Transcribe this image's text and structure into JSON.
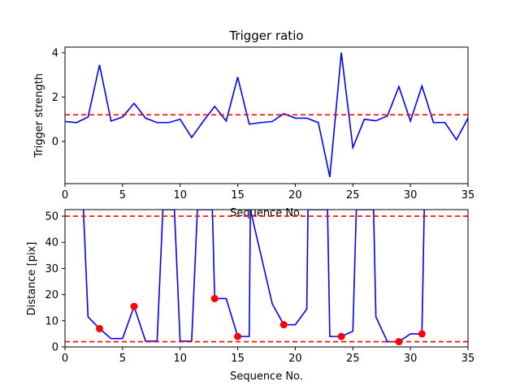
{
  "chart_data": [
    {
      "type": "line",
      "title": "Trigger ratio",
      "xlabel": "Sequence No.",
      "ylabel": "Trigger strength",
      "xlim": [
        0,
        35
      ],
      "ylim": [
        -1.9,
        4.25
      ],
      "xticks": [
        0,
        5,
        10,
        15,
        20,
        25,
        30,
        35
      ],
      "yticks": [
        0,
        2,
        4
      ],
      "grid": false,
      "series": [
        {
          "color": "#0000ff",
          "x": [
            0,
            1,
            2,
            3,
            4,
            5,
            6,
            7,
            8,
            9,
            10,
            11,
            12,
            13,
            14,
            15,
            16,
            17,
            18,
            19,
            20,
            21,
            22,
            23,
            24,
            25,
            26,
            27,
            28,
            29,
            30,
            31,
            32,
            33,
            34,
            35
          ],
          "y": [
            0.9,
            0.85,
            1.1,
            3.45,
            0.92,
            1.1,
            1.72,
            1.05,
            0.85,
            0.85,
            1.0,
            0.18,
            0.9,
            1.58,
            0.92,
            2.9,
            0.78,
            0.85,
            0.9,
            1.25,
            1.05,
            1.05,
            0.85,
            -1.6,
            4.0,
            -0.28,
            1.0,
            0.93,
            1.15,
            2.47,
            0.92,
            2.5,
            0.85,
            0.85,
            0.08,
            1.05
          ]
        }
      ],
      "hlines": [
        {
          "y": 1.2,
          "color": "#ff0000",
          "style": "dashed"
        }
      ]
    },
    {
      "type": "line",
      "title": "",
      "xlabel": "Sequence No.",
      "ylabel": "Distance [pix]",
      "xlim": [
        0,
        35
      ],
      "ylim": [
        0,
        52.5
      ],
      "xticks": [
        0,
        5,
        10,
        15,
        20,
        25,
        30,
        35
      ],
      "yticks": [
        0,
        10,
        20,
        30,
        40,
        50
      ],
      "grid": false,
      "series": [
        {
          "color": "#0000ff",
          "x": [
            1.6,
            2,
            3,
            4,
            5,
            6,
            7,
            8,
            8.5,
            9.5,
            10,
            11,
            11.5,
            12.8,
            13,
            14,
            15,
            16,
            16.1,
            18,
            19,
            20,
            21,
            21.1,
            22.8,
            23,
            24,
            25,
            25.3,
            26.8,
            27,
            28,
            29,
            30,
            31,
            31.2
          ],
          "y": [
            52.5,
            11.5,
            7,
            3.2,
            3.2,
            15.5,
            2.2,
            2.2,
            52.5,
            52.5,
            2.2,
            2.2,
            52.5,
            52.5,
            18.5,
            18.5,
            4,
            4,
            52.5,
            16.5,
            8.5,
            8.5,
            14.5,
            52.5,
            52.5,
            4,
            4,
            6,
            52.5,
            52.5,
            11.5,
            2,
            2,
            5,
            5,
            52.5
          ]
        }
      ],
      "markers": {
        "color": "#ff0000",
        "x": [
          3,
          6,
          13,
          15,
          19,
          24,
          29,
          31
        ],
        "y": [
          7,
          15.5,
          18.5,
          4,
          8.5,
          4,
          2,
          5
        ]
      },
      "hlines": [
        {
          "y": 50,
          "color": "#ff0000",
          "style": "dashed"
        },
        {
          "y": 2,
          "color": "#ff0000",
          "style": "dashed"
        }
      ]
    }
  ]
}
